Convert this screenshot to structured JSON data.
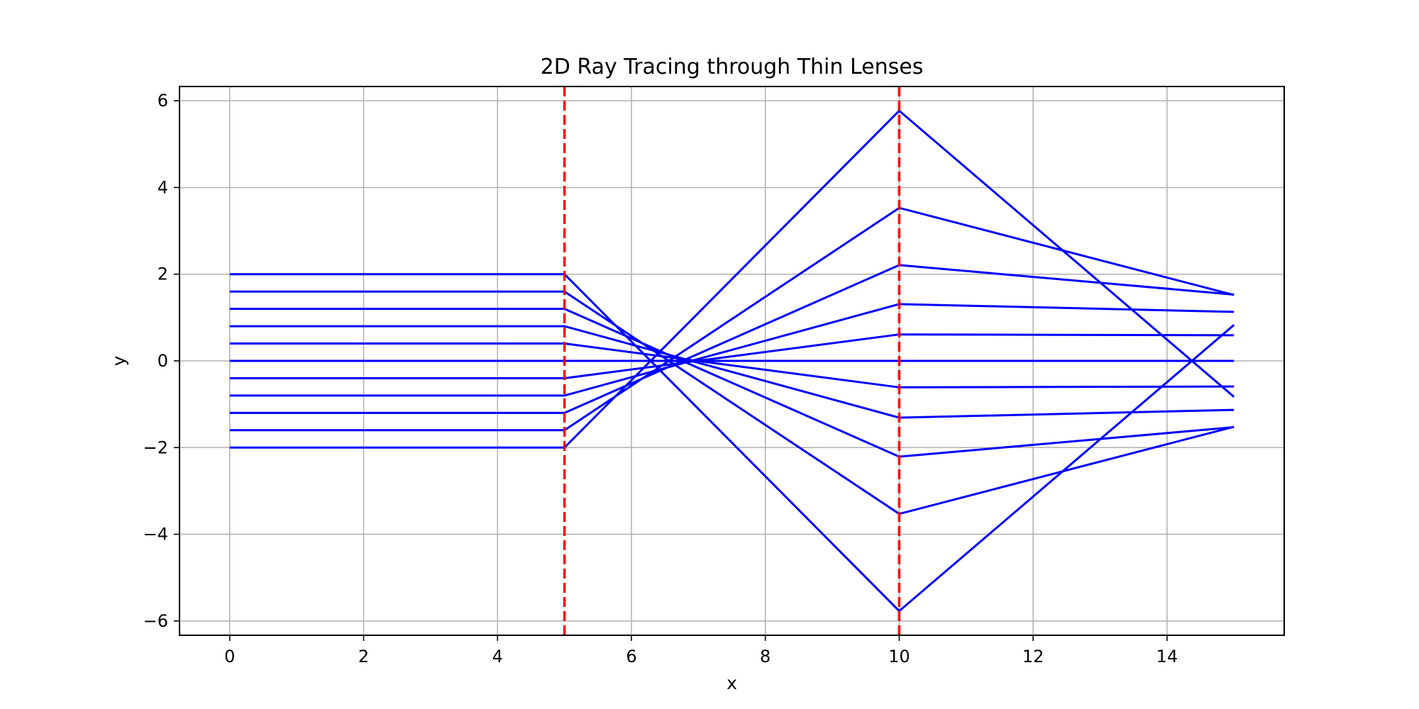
{
  "chart_data": {
    "type": "line",
    "title": "2D Ray Tracing through Thin Lenses",
    "xlabel": "x",
    "ylabel": "y",
    "xlim": [
      -0.75,
      15.75
    ],
    "ylim": [
      -6.33,
      6.33
    ],
    "xticks": [
      0,
      2,
      4,
      6,
      8,
      10,
      12,
      14
    ],
    "yticks": [
      -6,
      -4,
      -2,
      0,
      2,
      4,
      6
    ],
    "ytick_labels": [
      "−6",
      "−4",
      "−2",
      "0",
      "2",
      "4",
      "6"
    ],
    "grid": true,
    "colors": {
      "rays": "#0000ff",
      "lenses": "#ff0000",
      "grid": "#b0b0b0"
    },
    "lenses": [
      {
        "x": 5,
        "style": "dashed"
      },
      {
        "x": 10,
        "style": "dashed"
      }
    ],
    "rays": [
      {
        "x": [
          0,
          5,
          10,
          15
        ],
        "y": [
          2.0,
          2.0,
          -5.77,
          0.83
        ]
      },
      {
        "x": [
          0,
          5,
          10,
          15
        ],
        "y": [
          1.6,
          1.6,
          -3.53,
          -1.52
        ]
      },
      {
        "x": [
          0,
          5,
          10,
          15
        ],
        "y": [
          1.2,
          1.2,
          -2.21,
          -1.53
        ]
      },
      {
        "x": [
          0,
          5,
          10,
          15
        ],
        "y": [
          0.8,
          0.8,
          -1.31,
          -1.13
        ]
      },
      {
        "x": [
          0,
          5,
          10,
          15
        ],
        "y": [
          0.4,
          0.4,
          -0.61,
          -0.59
        ]
      },
      {
        "x": [
          0,
          5,
          10,
          15
        ],
        "y": [
          0.0,
          0.0,
          0.0,
          0.0
        ]
      },
      {
        "x": [
          0,
          5,
          10,
          15
        ],
        "y": [
          -0.4,
          -0.4,
          0.61,
          0.59
        ]
      },
      {
        "x": [
          0,
          5,
          10,
          15
        ],
        "y": [
          -0.8,
          -0.8,
          1.31,
          1.13
        ]
      },
      {
        "x": [
          0,
          5,
          10,
          15
        ],
        "y": [
          -1.2,
          -1.2,
          2.21,
          1.53
        ]
      },
      {
        "x": [
          0,
          5,
          10,
          15
        ],
        "y": [
          -1.6,
          -1.6,
          3.53,
          1.52
        ]
      },
      {
        "x": [
          0,
          5,
          10,
          15
        ],
        "y": [
          -2.0,
          -2.0,
          5.77,
          -0.83
        ]
      }
    ]
  }
}
